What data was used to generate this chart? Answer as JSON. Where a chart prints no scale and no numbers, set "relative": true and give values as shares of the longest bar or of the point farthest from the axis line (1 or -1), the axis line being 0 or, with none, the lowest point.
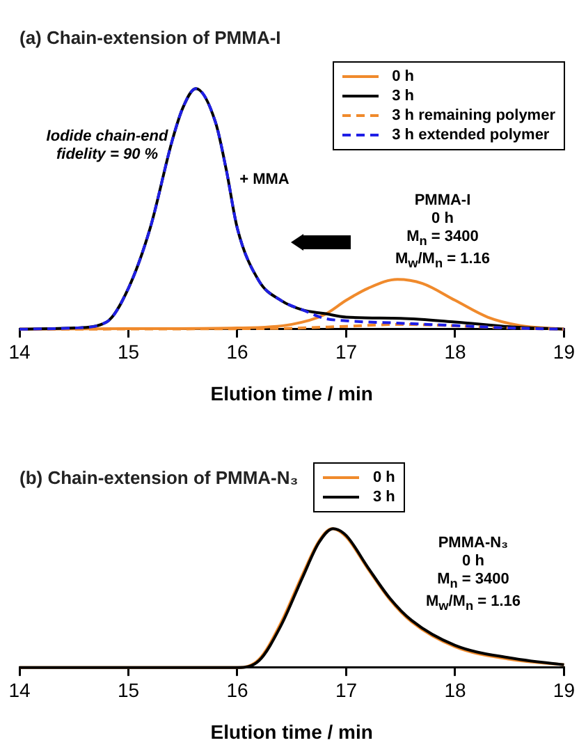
{
  "chart_data": [
    {
      "type": "line",
      "title": "(a) Chain-extension of PMMA-I",
      "xlabel": "Elution time / min",
      "relative": true,
      "xlim": [
        14,
        19
      ],
      "xticks": [
        14,
        15,
        16,
        17,
        18,
        19
      ],
      "grid": false,
      "legend": "top right",
      "line_style": "solid",
      "marker": "none",
      "tick_labels": "x",
      "annotations": [
        "Iodide chain-end fidelity = 90 %",
        "+ MMA",
        "PMMA-I\n0 h\nM$_{n}$ = 3400\nM$_{w}$/M$_{n}$ = 1.16"
      ],
      "series": [
        {
          "name": "0 h",
          "color": "#f08a2c",
          "x": [
            14,
            15,
            16,
            16.5,
            16.8,
            17,
            17.2,
            17.47,
            17.7,
            18,
            18.3,
            18.6,
            19
          ],
          "values": [
            0,
            0.002,
            0.005,
            0.02,
            0.06,
            0.12,
            0.17,
            0.207,
            0.19,
            0.12,
            0.05,
            0.015,
            0
          ]
        },
        {
          "name": "3 h",
          "color": "#000000",
          "x": [
            14,
            14.5,
            14.8,
            15,
            15.2,
            15.4,
            15.5,
            15.62,
            15.8,
            15.9,
            16,
            16.2,
            16.4,
            16.6,
            16.8,
            17,
            17.5,
            18,
            18.5,
            19
          ],
          "values": [
            0,
            0.005,
            0.03,
            0.17,
            0.42,
            0.78,
            0.92,
            1,
            0.86,
            0.66,
            0.42,
            0.2,
            0.12,
            0.08,
            0.065,
            0.05,
            0.045,
            0.03,
            0.01,
            0
          ]
        },
        {
          "name": "3 h remaining polymer",
          "color": "#f08a2c",
          "line_style": "dashed",
          "x": [
            14,
            16,
            16.5,
            17,
            17.5,
            18,
            18.5,
            19
          ],
          "values": [
            0,
            0.002,
            0.004,
            0.012,
            0.02,
            0.014,
            0.005,
            0
          ]
        },
        {
          "name": "3 h extended polymer",
          "color": "#1f1fe6",
          "line_style": "dashed",
          "x": [
            14,
            14.5,
            14.8,
            15,
            15.2,
            15.4,
            15.5,
            15.62,
            15.8,
            15.9,
            16,
            16.2,
            16.4,
            16.6,
            16.8,
            17,
            17.5,
            18,
            18.5,
            19
          ],
          "values": [
            0,
            0.005,
            0.03,
            0.17,
            0.42,
            0.78,
            0.92,
            1,
            0.86,
            0.66,
            0.42,
            0.2,
            0.12,
            0.08,
            0.045,
            0.035,
            0.025,
            0.015,
            0.005,
            0
          ]
        }
      ]
    },
    {
      "type": "line",
      "title": "(b) Chain-extension of PMMA-N₃",
      "xlabel": "Elution time / min",
      "relative": true,
      "xlim": [
        14,
        19
      ],
      "xticks": [
        14,
        15,
        16,
        17,
        18,
        19
      ],
      "grid": false,
      "legend": "top",
      "line_style": "solid",
      "marker": "none",
      "tick_labels": "x",
      "annotations": [
        "PMMA-N₃\n0 h\nM$_{n}$ = 3400\nM$_{w}$/M$_{n}$ = 1.16"
      ],
      "series": [
        {
          "name": "0 h",
          "color": "#f08a2c",
          "x": [
            14,
            16,
            16.2,
            16.4,
            16.6,
            16.75,
            16.87,
            17,
            17.2,
            17.4,
            17.6,
            18,
            18.5,
            19
          ],
          "values": [
            0,
            0,
            0.06,
            0.32,
            0.67,
            0.91,
            1,
            0.94,
            0.71,
            0.49,
            0.33,
            0.15,
            0.06,
            0.02
          ]
        },
        {
          "name": "3 h",
          "color": "#000000",
          "x": [
            14,
            16,
            16.2,
            16.4,
            16.6,
            16.75,
            16.88,
            17,
            17.2,
            17.4,
            17.6,
            18,
            18.5,
            19
          ],
          "values": [
            0,
            0,
            0.05,
            0.3,
            0.65,
            0.9,
            1,
            0.95,
            0.72,
            0.5,
            0.34,
            0.16,
            0.07,
            0.02
          ]
        }
      ]
    }
  ]
}
